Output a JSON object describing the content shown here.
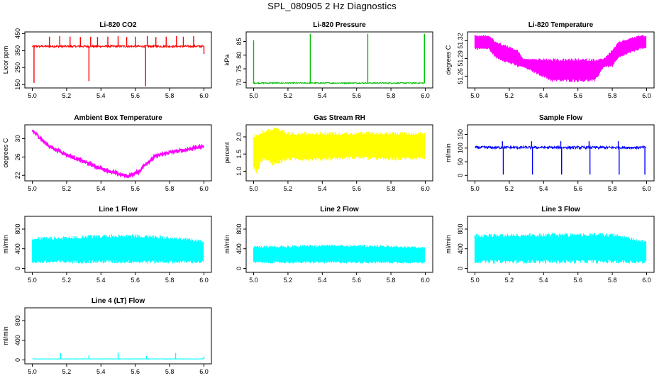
{
  "figure": {
    "title": "SPL_080905  2 Hz Diagnostics"
  },
  "chart_data": [
    {
      "id": "co2",
      "type": "line",
      "title": "Li-820 CO2",
      "ylabel": "Licor ppm",
      "color": "#ff0000",
      "xlim": [
        5.0,
        6.0
      ],
      "ylim": [
        130,
        460
      ],
      "xticks": [
        "5.0",
        "5.2",
        "5.4",
        "5.6",
        "5.8",
        "6.0"
      ],
      "yticks": [
        "150",
        "250",
        "350",
        "450"
      ],
      "baseline": 375,
      "noise": 6,
      "series": [
        {
          "x": [
            5.0,
            5.01,
            5.04,
            5.1,
            5.16,
            5.17,
            5.22,
            5.28,
            5.33,
            5.34,
            5.38,
            5.44,
            5.5,
            5.55,
            5.6,
            5.66,
            5.67,
            5.72,
            5.78,
            5.84,
            5.88,
            5.94,
            5.99,
            6.0
          ],
          "y": [
            375,
            160,
            375,
            432,
            435,
            375,
            432,
            430,
            170,
            432,
            430,
            432,
            435,
            430,
            432,
            140,
            435,
            430,
            432,
            435,
            432,
            435,
            375,
            330
          ]
        }
      ]
    },
    {
      "id": "pressure",
      "type": "line",
      "title": "Li-820 Pressure",
      "ylabel": "kPa",
      "color": "#00c000",
      "xlim": [
        5.0,
        6.0
      ],
      "ylim": [
        68,
        88.5
      ],
      "xticks": [
        "5.0",
        "5.2",
        "5.4",
        "5.6",
        "5.8",
        "6.0"
      ],
      "yticks": [
        "70",
        "75",
        "80",
        "85"
      ],
      "baseline": 69.8,
      "noise": 0.2,
      "series": [
        {
          "x": [
            5.0,
            5.33,
            5.665,
            5.995
          ],
          "y": [
            85.5,
            87.8,
            87.8,
            87.8
          ]
        }
      ]
    },
    {
      "id": "temperature",
      "type": "area",
      "title": "Li-820 Temperature",
      "ylabel": "degrees C",
      "color": "#ff00ff",
      "xlim": [
        5.0,
        6.0
      ],
      "ylim": [
        51.24,
        51.335
      ],
      "xticks": [
        "5.0",
        "5.2",
        "5.4",
        "5.6",
        "5.8",
        "6.0"
      ],
      "yticks": [
        "51.26",
        "51.29",
        "51.32"
      ],
      "series": [
        {
          "x": [
            5.0,
            5.08,
            5.12,
            5.25,
            5.28,
            5.45,
            5.7,
            5.75,
            5.8,
            5.84,
            5.96,
            6.0
          ],
          "y_min": [
            51.305,
            51.305,
            51.29,
            51.275,
            51.275,
            51.25,
            51.25,
            51.275,
            51.275,
            51.29,
            51.305,
            51.305
          ],
          "y_max": [
            51.33,
            51.33,
            51.32,
            51.305,
            51.29,
            51.29,
            51.29,
            51.29,
            51.305,
            51.32,
            51.33,
            51.33
          ]
        }
      ]
    },
    {
      "id": "ambient",
      "type": "line",
      "title": "Ambient Box Temperature",
      "ylabel": "degrees C",
      "color": "#ff00ff",
      "xlim": [
        5.0,
        6.0
      ],
      "ylim": [
        20.8,
        33.0
      ],
      "xticks": [
        "5.0",
        "5.2",
        "5.4",
        "5.6",
        "5.8",
        "6.0"
      ],
      "yticks": [
        "22",
        "26",
        "30"
      ],
      "noise": 0.35,
      "series": [
        {
          "x": [
            5.0,
            5.05,
            5.1,
            5.2,
            5.3,
            5.4,
            5.5,
            5.56,
            5.62,
            5.66,
            5.72,
            5.8,
            5.9,
            6.0
          ],
          "y": [
            31.8,
            30.0,
            28.3,
            26.5,
            25.0,
            23.5,
            22.3,
            21.8,
            22.8,
            24.5,
            26.2,
            27.0,
            27.6,
            28.4
          ]
        }
      ]
    },
    {
      "id": "rh",
      "type": "area",
      "title": "Gas Stream RH",
      "ylabel": "percent",
      "color": "#ffff00",
      "xlim": [
        5.0,
        6.0
      ],
      "ylim": [
        0.72,
        2.35
      ],
      "xticks": [
        "5.0",
        "5.2",
        "5.4",
        "5.6",
        "5.8",
        "6.0"
      ],
      "yticks": [
        "1.0",
        "1.5",
        "2.0"
      ],
      "series": [
        {
          "x": [
            5.0,
            5.02,
            5.05,
            5.12,
            5.2,
            5.4,
            5.6,
            5.8,
            6.0
          ],
          "y_min": [
            1.1,
            0.9,
            1.3,
            1.15,
            1.3,
            1.3,
            1.35,
            1.3,
            1.35
          ],
          "y_max": [
            2.1,
            2.1,
            2.2,
            2.3,
            2.15,
            2.15,
            2.15,
            2.15,
            2.15
          ]
        }
      ]
    },
    {
      "id": "sample",
      "type": "line",
      "title": "Sample Flow",
      "ylabel": "ml/min",
      "color": "#0000ff",
      "xlim": [
        5.0,
        6.0
      ],
      "ylim": [
        -20,
        185
      ],
      "xticks": [
        "5.0",
        "5.2",
        "5.4",
        "5.6",
        "5.8",
        "6.0"
      ],
      "yticks": [
        "0",
        "50",
        "100",
        "150"
      ],
      "baseline": 102,
      "noise": 5,
      "series": [
        {
          "x": [
            5.16,
            5.165,
            5.33,
            5.335,
            5.5,
            5.505,
            5.665,
            5.67,
            5.835,
            5.84,
            5.99
          ],
          "y": [
            125,
            3,
            125,
            3,
            125,
            3,
            125,
            3,
            125,
            3,
            3
          ]
        }
      ]
    },
    {
      "id": "line1",
      "type": "area",
      "title": "Line 1 Flow",
      "ylabel": "ml/min",
      "color": "#00ffff",
      "xlim": [
        5.0,
        6.0
      ],
      "ylim": [
        -80,
        1060
      ],
      "xticks": [
        "5.0",
        "5.2",
        "5.4",
        "5.6",
        "5.8",
        "6.0"
      ],
      "yticks": [
        "0",
        "400",
        "800"
      ],
      "series": [
        {
          "x": [
            5.0,
            5.16,
            5.33,
            5.5,
            5.66,
            5.83,
            6.0
          ],
          "y_min": [
            100,
            100,
            100,
            100,
            100,
            100,
            100
          ],
          "y_max": [
            640,
            650,
            680,
            700,
            690,
            650,
            580
          ]
        }
      ]
    },
    {
      "id": "line2",
      "type": "area",
      "title": "Line 2 Flow",
      "ylabel": "ml/min",
      "color": "#00ffff",
      "xlim": [
        5.0,
        6.0
      ],
      "ylim": [
        -80,
        1060
      ],
      "xticks": [
        "5.0",
        "5.2",
        "5.4",
        "5.6",
        "5.8",
        "6.0"
      ],
      "yticks": [
        "0",
        "400",
        "800"
      ],
      "series": [
        {
          "x": [
            5.0,
            5.2,
            5.5,
            5.8,
            6.0
          ],
          "y_min": [
            100,
            100,
            100,
            100,
            100
          ],
          "y_max": [
            460,
            470,
            490,
            470,
            440
          ]
        }
      ]
    },
    {
      "id": "line3",
      "type": "area",
      "title": "Line 3 Flow",
      "ylabel": "ml/min",
      "color": "#00ffff",
      "xlim": [
        5.0,
        6.0
      ],
      "ylim": [
        -80,
        1060
      ],
      "xticks": [
        "5.0",
        "5.2",
        "5.4",
        "5.6",
        "5.8",
        "6.0"
      ],
      "yticks": [
        "0",
        "400",
        "800"
      ],
      "series": [
        {
          "x": [
            5.0,
            5.2,
            5.5,
            5.8,
            6.0
          ],
          "y_min": [
            100,
            100,
            100,
            100,
            100
          ],
          "y_max": [
            700,
            710,
            720,
            720,
            560
          ]
        }
      ]
    },
    {
      "id": "line4",
      "type": "line",
      "title": "Line 4 (LT) Flow",
      "ylabel": "ml/min",
      "color": "#00ffff",
      "xlim": [
        5.0,
        6.0
      ],
      "ylim": [
        -80,
        1060
      ],
      "xticks": [
        "5.0",
        "5.2",
        "5.4",
        "5.6",
        "5.8",
        "6.0"
      ],
      "yticks": [
        "0",
        "400",
        "800"
      ],
      "baseline": 20,
      "noise": 4,
      "series": [
        {
          "x": [
            5.165,
            5.33,
            5.5,
            5.665,
            5.835,
            6.0
          ],
          "y": [
            140,
            90,
            150,
            80,
            140,
            70
          ]
        }
      ]
    }
  ]
}
